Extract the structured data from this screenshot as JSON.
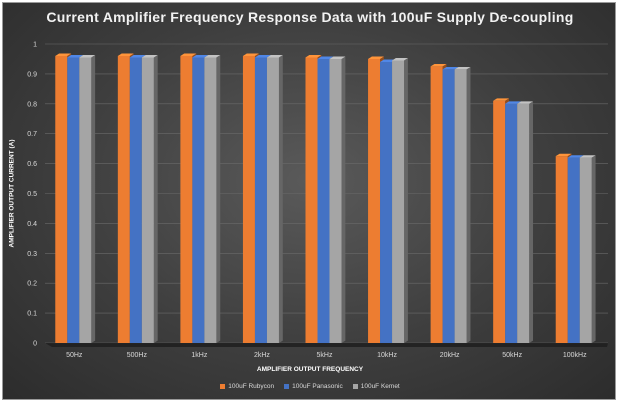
{
  "chart_data": {
    "type": "bar",
    "title": "Current Amplifier Frequency Response Data with 100uF Supply De-coupling",
    "xlabel": "AMPLIFIER OUTPUT FREQUENCY",
    "ylabel": "AMPLIFIER OUTPUT CURRENT (A)",
    "ylim": [
      0,
      1
    ],
    "yticks": [
      "0",
      "0.1",
      "0.2",
      "0.3",
      "0.4",
      "0.5",
      "0.6",
      "0.7",
      "0.8",
      "0.9",
      "1"
    ],
    "grid": true,
    "legend_position": "bottom",
    "categories": [
      "50Hz",
      "500Hz",
      "1kHz",
      "2kHz",
      "5kHz",
      "10kHz",
      "20kHz",
      "50kHz",
      "100kHz"
    ],
    "series": [
      {
        "name": "100uF Rubycon",
        "color": "#ed7d31",
        "values": [
          0.96,
          0.96,
          0.96,
          0.96,
          0.955,
          0.95,
          0.925,
          0.81,
          0.625
        ]
      },
      {
        "name": "100uF Panasonic",
        "color": "#4472c4",
        "values": [
          0.955,
          0.955,
          0.955,
          0.955,
          0.95,
          0.94,
          0.915,
          0.8,
          0.62
        ]
      },
      {
        "name": "100uF Kemet",
        "color": "#a5a5a5",
        "values": [
          0.955,
          0.955,
          0.955,
          0.955,
          0.95,
          0.945,
          0.915,
          0.8,
          0.62
        ]
      }
    ]
  }
}
